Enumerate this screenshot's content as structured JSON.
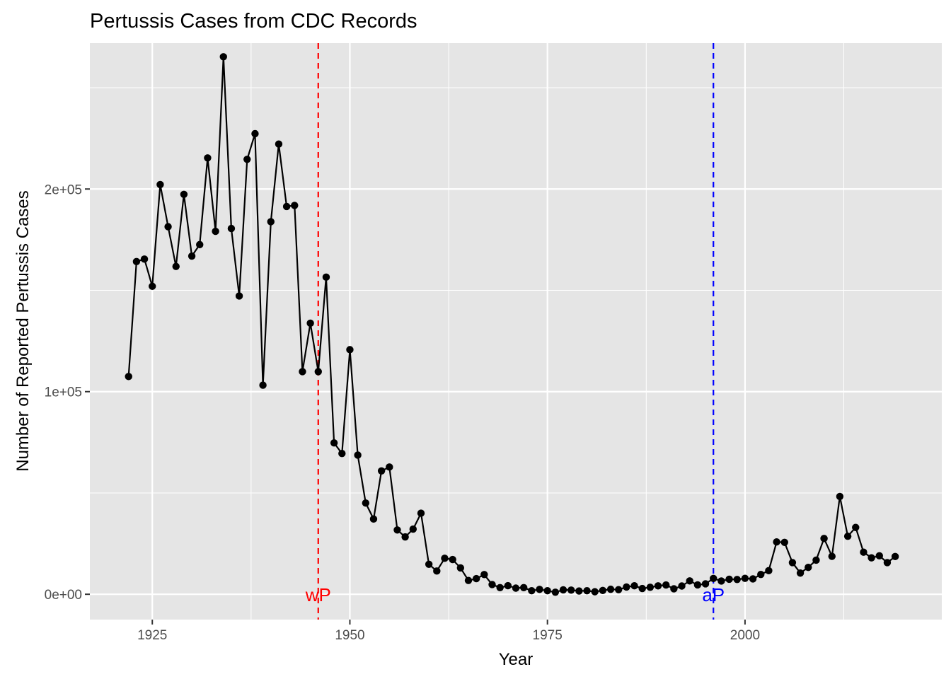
{
  "chart_data": {
    "type": "line",
    "title": "Pertussis Cases from CDC Records",
    "xlabel": "Year",
    "ylabel": "Number of Reported Pertussis Cases",
    "xlim": [
      1917.1,
      2024.9
    ],
    "ylim": [
      -12500,
      272000
    ],
    "x_ticks": [
      1925,
      1950,
      1975,
      2000
    ],
    "x_tick_labels": [
      "1925",
      "1950",
      "1975",
      "2000"
    ],
    "y_ticks": [
      0,
      100000,
      200000
    ],
    "y_tick_labels": [
      "0e+00",
      "1e+05",
      "2e+05"
    ],
    "grid": true,
    "colors": {
      "panel": "#e5e5e5",
      "grid": "#ffffff",
      "series": "#000000",
      "wP": "#ff0000",
      "aP": "#0000ff"
    },
    "vlines": [
      {
        "x": 1946,
        "label": "wP",
        "color": "#ff0000"
      },
      {
        "x": 1996,
        "label": "aP",
        "color": "#0000ff"
      }
    ],
    "series": [
      {
        "x": [
          1922,
          1923,
          1924,
          1925,
          1926,
          1927,
          1928,
          1929,
          1930,
          1931,
          1932,
          1933,
          1934,
          1935,
          1936,
          1937,
          1938,
          1939,
          1940,
          1941,
          1942,
          1943,
          1944,
          1945,
          1946,
          1947,
          1948,
          1949,
          1950,
          1951,
          1952,
          1953,
          1954,
          1955,
          1956,
          1957,
          1958,
          1959,
          1960,
          1961,
          1962,
          1963,
          1964,
          1965,
          1966,
          1967,
          1968,
          1969,
          1970,
          1971,
          1972,
          1973,
          1974,
          1975,
          1976,
          1977,
          1978,
          1979,
          1980,
          1981,
          1982,
          1983,
          1984,
          1985,
          1986,
          1987,
          1988,
          1989,
          1990,
          1991,
          1992,
          1993,
          1994,
          1995,
          1996,
          1997,
          1998,
          1999,
          2000,
          2001,
          2002,
          2003,
          2004,
          2005,
          2006,
          2007,
          2008,
          2009,
          2010,
          2011,
          2012,
          2013,
          2014,
          2015,
          2016,
          2017,
          2018,
          2019
        ],
        "y": [
          107473,
          164191,
          165418,
          152003,
          202210,
          181411,
          161799,
          197371,
          166914,
          172559,
          215343,
          179135,
          265269,
          180518,
          147237,
          214652,
          227319,
          103188,
          183866,
          222202,
          191383,
          191890,
          109873,
          133792,
          109860,
          156517,
          74715,
          69479,
          120718,
          68687,
          45030,
          37129,
          60886,
          62786,
          31732,
          28295,
          32148,
          40005,
          14809,
          11468,
          17749,
          17135,
          13005,
          6799,
          7717,
          9718,
          4810,
          3285,
          4249,
          3036,
          3287,
          1759,
          2402,
          1738,
          1010,
          2177,
          2063,
          1623,
          1730,
          1248,
          1895,
          2463,
          2276,
          3589,
          4195,
          2823,
          3450,
          4157,
          4570,
          2719,
          4083,
          6586,
          4617,
          5137,
          7796,
          6564,
          7405,
          7298,
          7867,
          7580,
          9771,
          11647,
          25827,
          25616,
          15632,
          10454,
          13278,
          16858,
          27550,
          18719,
          48277,
          28639,
          32971,
          20762,
          17972,
          18975,
          15609,
          18617
        ]
      }
    ]
  }
}
